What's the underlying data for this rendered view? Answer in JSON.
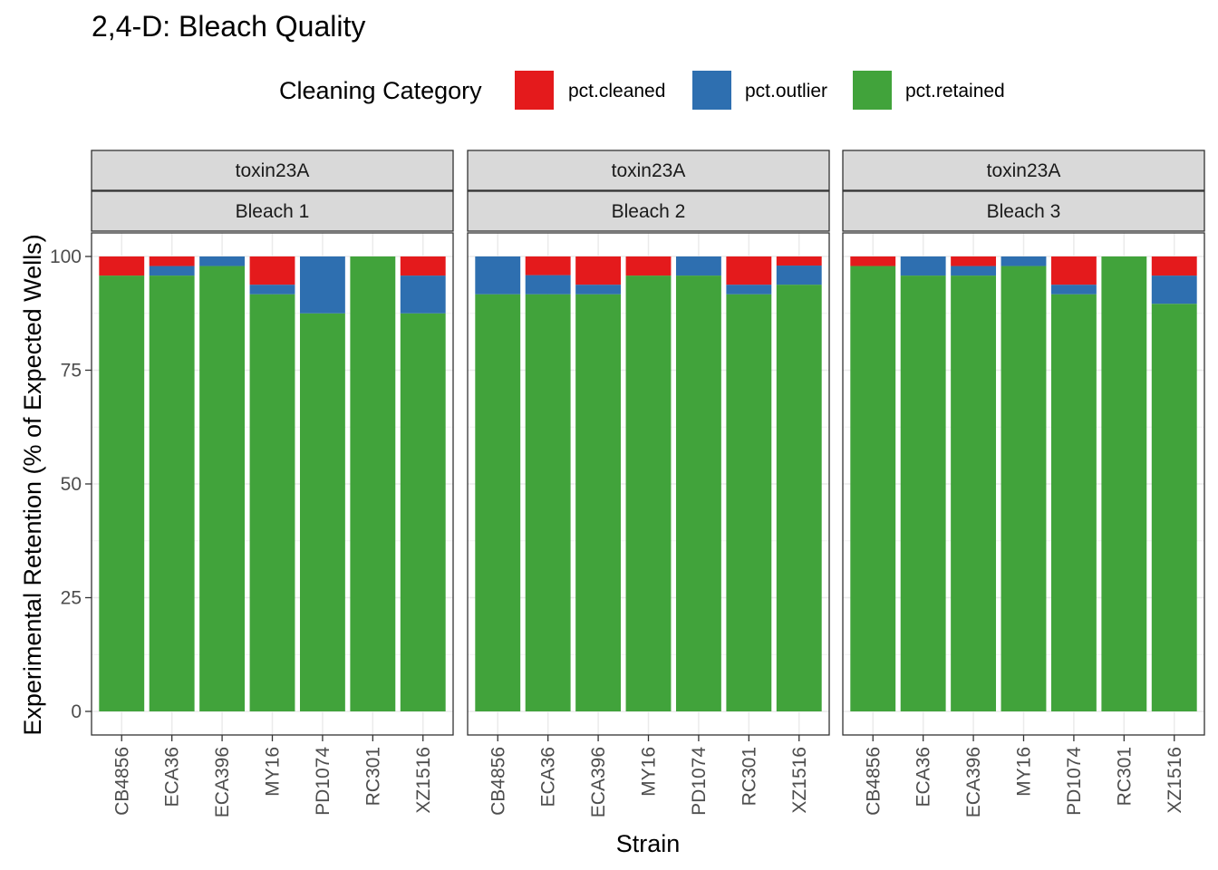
{
  "chart_data": {
    "type": "bar",
    "stacked": true,
    "title": "2,4-D: Bleach Quality",
    "xlabel": "Strain",
    "ylabel": "Experimental Retention (% of Expected Wells)",
    "ylim": [
      0,
      100
    ],
    "yticks": [
      0,
      25,
      50,
      75,
      100
    ],
    "grid": true,
    "legend": {
      "title": "Cleaning Category",
      "position": "top",
      "entries": [
        {
          "name": "pct.cleaned",
          "color": "#E41A1C"
        },
        {
          "name": "pct.outlier",
          "color": "#2E6FB0"
        },
        {
          "name": "pct.retained",
          "color": "#41A33B"
        }
      ]
    },
    "categories": [
      "CB4856",
      "ECA36",
      "ECA396",
      "MY16",
      "PD1074",
      "RC301",
      "XZ1516"
    ],
    "stack_order": [
      "pct.retained",
      "pct.outlier",
      "pct.cleaned"
    ],
    "panels": [
      {
        "strip_top": "toxin23A",
        "strip_bottom": "Bleach 1",
        "series": [
          {
            "name": "pct.retained",
            "values": [
              95.8,
              95.8,
              97.9,
              91.7,
              87.5,
              100,
              87.5
            ]
          },
          {
            "name": "pct.outlier",
            "values": [
              0,
              2.1,
              2.1,
              2.1,
              12.5,
              0,
              8.3
            ]
          },
          {
            "name": "pct.cleaned",
            "values": [
              4.2,
              2.1,
              0,
              6.2,
              0,
              0,
              4.2
            ]
          }
        ]
      },
      {
        "strip_top": "toxin23A",
        "strip_bottom": "Bleach 2",
        "series": [
          {
            "name": "pct.retained",
            "values": [
              91.7,
              91.7,
              91.7,
              95.8,
              95.8,
              91.7,
              93.8
            ]
          },
          {
            "name": "pct.outlier",
            "values": [
              8.3,
              4.2,
              2.1,
              0,
              4.2,
              2.1,
              4.2
            ]
          },
          {
            "name": "pct.cleaned",
            "values": [
              0,
              4.1,
              6.2,
              4.2,
              0,
              6.2,
              2.0
            ]
          }
        ]
      },
      {
        "strip_top": "toxin23A",
        "strip_bottom": "Bleach 3",
        "series": [
          {
            "name": "pct.retained",
            "values": [
              97.9,
              95.8,
              95.8,
              97.9,
              91.7,
              100,
              89.6
            ]
          },
          {
            "name": "pct.outlier",
            "values": [
              0,
              4.2,
              2.1,
              2.1,
              2.1,
              0,
              6.2
            ]
          },
          {
            "name": "pct.cleaned",
            "values": [
              2.1,
              0,
              2.1,
              0,
              6.2,
              0,
              4.2
            ]
          }
        ]
      }
    ]
  }
}
